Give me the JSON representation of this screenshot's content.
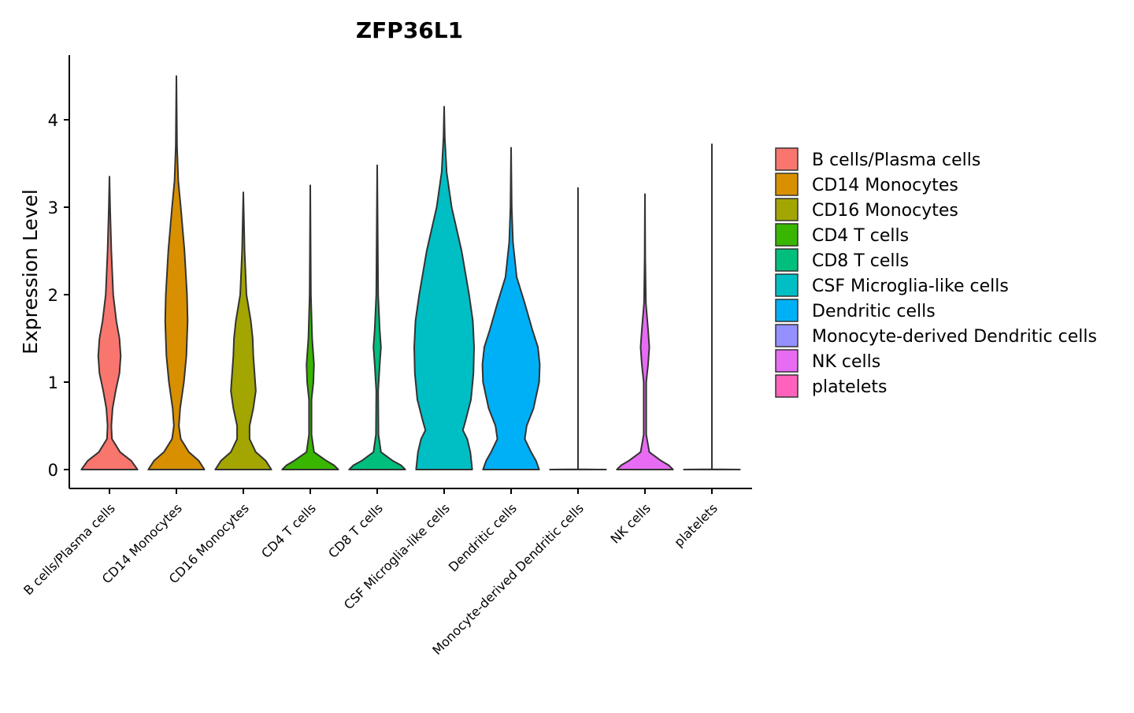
{
  "chart_data": {
    "type": "violin",
    "title": "ZFP36L1",
    "xlabel": "",
    "ylabel": "Expression Level",
    "ylim": [
      -0.22,
      4.75
    ],
    "yticks": [
      0,
      1,
      2,
      3,
      4
    ],
    "legend_position": "right",
    "categories": [
      "B cells/Plasma cells",
      "CD14 Monocytes",
      "CD16 Monocytes",
      "CD4 T cells",
      "CD8 T cells",
      "CSF Microglia-like cells",
      "Dendritic cells",
      "Monocyte-derived Dendritic cells",
      "NK cells",
      "platelets"
    ],
    "colors": [
      "#F8766D",
      "#D89000",
      "#A3A500",
      "#39B600",
      "#00BF7D",
      "#00BFC4",
      "#00B0F6",
      "#9590FF",
      "#E76BF3",
      "#FF62BC"
    ],
    "series": [
      {
        "name": "B cells/Plasma cells",
        "max": 3.35,
        "profile": [
          [
            0,
            0.45
          ],
          [
            0.1,
            0.35
          ],
          [
            0.2,
            0.17
          ],
          [
            0.35,
            0.04
          ],
          [
            0.5,
            0.03
          ],
          [
            0.7,
            0.05
          ],
          [
            0.9,
            0.1
          ],
          [
            1.1,
            0.16
          ],
          [
            1.3,
            0.18
          ],
          [
            1.5,
            0.16
          ],
          [
            1.7,
            0.11
          ],
          [
            2.0,
            0.06
          ],
          [
            2.5,
            0.03
          ],
          [
            3.0,
            0.01
          ],
          [
            3.35,
            0.0
          ]
        ]
      },
      {
        "name": "CD14 Monocytes",
        "max": 4.5,
        "profile": [
          [
            0,
            0.45
          ],
          [
            0.1,
            0.36
          ],
          [
            0.2,
            0.2
          ],
          [
            0.35,
            0.07
          ],
          [
            0.5,
            0.04
          ],
          [
            0.7,
            0.06
          ],
          [
            1.0,
            0.12
          ],
          [
            1.3,
            0.16
          ],
          [
            1.7,
            0.18
          ],
          [
            2.0,
            0.17
          ],
          [
            2.5,
            0.13
          ],
          [
            3.0,
            0.07
          ],
          [
            3.3,
            0.03
          ],
          [
            3.7,
            0.01
          ],
          [
            4.5,
            0.0
          ]
        ]
      },
      {
        "name": "CD16 Monocytes",
        "max": 3.17,
        "profile": [
          [
            0,
            0.45
          ],
          [
            0.1,
            0.36
          ],
          [
            0.2,
            0.2
          ],
          [
            0.35,
            0.1
          ],
          [
            0.5,
            0.1
          ],
          [
            0.7,
            0.16
          ],
          [
            0.9,
            0.2
          ],
          [
            1.1,
            0.18
          ],
          [
            1.3,
            0.16
          ],
          [
            1.5,
            0.15
          ],
          [
            1.7,
            0.12
          ],
          [
            2.0,
            0.05
          ],
          [
            2.5,
            0.02
          ],
          [
            3.17,
            0.0
          ]
        ]
      },
      {
        "name": "CD4 T cells",
        "max": 3.25,
        "profile": [
          [
            0,
            0.45
          ],
          [
            0.05,
            0.38
          ],
          [
            0.1,
            0.26
          ],
          [
            0.2,
            0.06
          ],
          [
            0.4,
            0.02
          ],
          [
            0.8,
            0.02
          ],
          [
            1.0,
            0.05
          ],
          [
            1.2,
            0.06
          ],
          [
            1.5,
            0.03
          ],
          [
            2.0,
            0.01
          ],
          [
            3.25,
            0.0
          ]
        ]
      },
      {
        "name": "CD8 T cells",
        "max": 3.48,
        "profile": [
          [
            0,
            0.45
          ],
          [
            0.05,
            0.38
          ],
          [
            0.1,
            0.25
          ],
          [
            0.2,
            0.06
          ],
          [
            0.4,
            0.02
          ],
          [
            0.9,
            0.015
          ],
          [
            1.2,
            0.04
          ],
          [
            1.4,
            0.06
          ],
          [
            1.6,
            0.04
          ],
          [
            2.0,
            0.015
          ],
          [
            3.48,
            0.0
          ]
        ]
      },
      {
        "name": "CSF Microglia-like cells",
        "max": 4.15,
        "profile": [
          [
            0,
            0.45
          ],
          [
            0.2,
            0.42
          ],
          [
            0.35,
            0.37
          ],
          [
            0.45,
            0.3
          ],
          [
            0.55,
            0.34
          ],
          [
            0.8,
            0.43
          ],
          [
            1.1,
            0.47
          ],
          [
            1.4,
            0.48
          ],
          [
            1.7,
            0.46
          ],
          [
            2.0,
            0.4
          ],
          [
            2.5,
            0.28
          ],
          [
            3.0,
            0.12
          ],
          [
            3.4,
            0.04
          ],
          [
            3.8,
            0.01
          ],
          [
            4.15,
            0.0
          ]
        ]
      },
      {
        "name": "Dendritic cells",
        "max": 3.68,
        "profile": [
          [
            0,
            0.45
          ],
          [
            0.1,
            0.4
          ],
          [
            0.2,
            0.32
          ],
          [
            0.35,
            0.22
          ],
          [
            0.5,
            0.25
          ],
          [
            0.7,
            0.36
          ],
          [
            1.0,
            0.45
          ],
          [
            1.2,
            0.46
          ],
          [
            1.4,
            0.43
          ],
          [
            1.6,
            0.34
          ],
          [
            1.9,
            0.22
          ],
          [
            2.2,
            0.09
          ],
          [
            2.6,
            0.03
          ],
          [
            3.0,
            0.01
          ],
          [
            3.68,
            0.0
          ]
        ]
      },
      {
        "name": "Monocyte-derived Dendritic cells",
        "max": 3.22,
        "profile": [
          [
            0,
            0.45
          ],
          [
            0.003,
            0.0
          ],
          [
            3.22,
            0.0
          ]
        ]
      },
      {
        "name": "NK cells",
        "max": 3.15,
        "profile": [
          [
            0,
            0.45
          ],
          [
            0.05,
            0.38
          ],
          [
            0.1,
            0.26
          ],
          [
            0.2,
            0.07
          ],
          [
            0.4,
            0.02
          ],
          [
            1.0,
            0.02
          ],
          [
            1.2,
            0.05
          ],
          [
            1.4,
            0.07
          ],
          [
            1.6,
            0.05
          ],
          [
            1.9,
            0.015
          ],
          [
            2.4,
            0.005
          ],
          [
            3.15,
            0.0
          ]
        ]
      },
      {
        "name": "platelets",
        "max": 3.72,
        "profile": [
          [
            0,
            0.45
          ],
          [
            0.003,
            0.0
          ],
          [
            3.72,
            0.0
          ]
        ]
      }
    ]
  }
}
